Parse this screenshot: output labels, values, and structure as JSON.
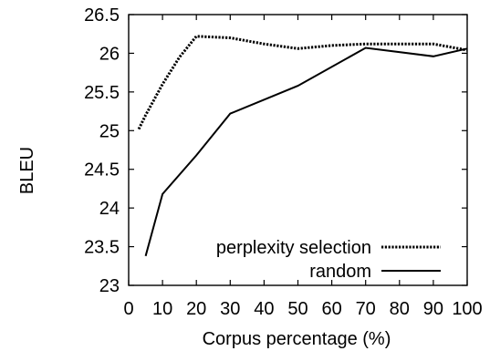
{
  "chart_data": {
    "type": "line",
    "title": "",
    "xlabel": "Corpus percentage (%)",
    "ylabel": "BLEU",
    "xlim": [
      0,
      100
    ],
    "ylim": [
      23,
      26.5
    ],
    "xticks": [
      0,
      10,
      20,
      30,
      40,
      50,
      60,
      70,
      80,
      90,
      100
    ],
    "yticks": [
      23,
      23.5,
      24,
      24.5,
      25,
      25.5,
      26,
      26.5
    ],
    "ytick_labels": [
      "23",
      "23.5",
      "24",
      "24.5",
      "25",
      "25.5",
      "26",
      "26.5"
    ],
    "grid": false,
    "legend_position": "bottom-right",
    "series": [
      {
        "name": "perplexity selection",
        "style": "dotted",
        "color": "#000000",
        "x": [
          3,
          5,
          10,
          15,
          20,
          30,
          40,
          50,
          60,
          70,
          80,
          90,
          100
        ],
        "y": [
          25.02,
          25.2,
          25.6,
          25.95,
          26.22,
          26.2,
          26.12,
          26.06,
          26.1,
          26.12,
          26.12,
          26.12,
          26.04
        ]
      },
      {
        "name": "random",
        "style": "solid",
        "color": "#000000",
        "x": [
          5,
          10,
          20,
          30,
          50,
          70,
          90,
          100
        ],
        "y": [
          23.38,
          24.18,
          24.68,
          25.22,
          25.58,
          26.07,
          25.96,
          26.06
        ]
      }
    ]
  }
}
